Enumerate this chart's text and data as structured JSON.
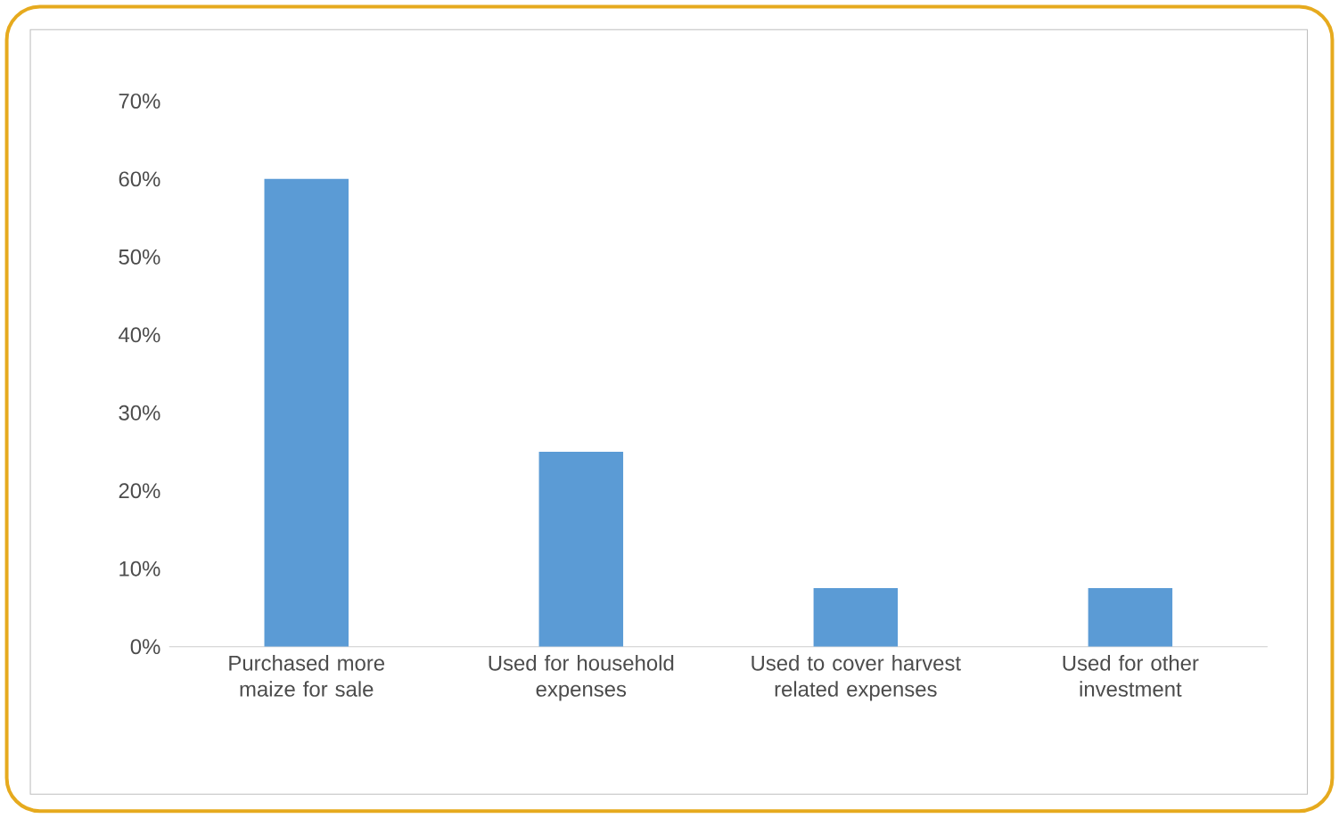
{
  "chart_data": {
    "type": "bar",
    "categories": [
      "Purchased more maize for sale",
      "Used for household expenses",
      "Used to cover harvest related expenses",
      "Used for other investment"
    ],
    "values": [
      60,
      25,
      7.5,
      7.5
    ],
    "color": "#5b9bd5",
    "ylim": [
      0,
      70
    ],
    "yticks": [
      {
        "value": 0,
        "label": "0%"
      },
      {
        "value": 10,
        "label": "10%"
      },
      {
        "value": 20,
        "label": "20%"
      },
      {
        "value": 30,
        "label": "30%"
      },
      {
        "value": 40,
        "label": "40%"
      },
      {
        "value": 50,
        "label": "50%"
      },
      {
        "value": 60,
        "label": "60%"
      },
      {
        "value": 70,
        "label": "70%"
      }
    ]
  }
}
